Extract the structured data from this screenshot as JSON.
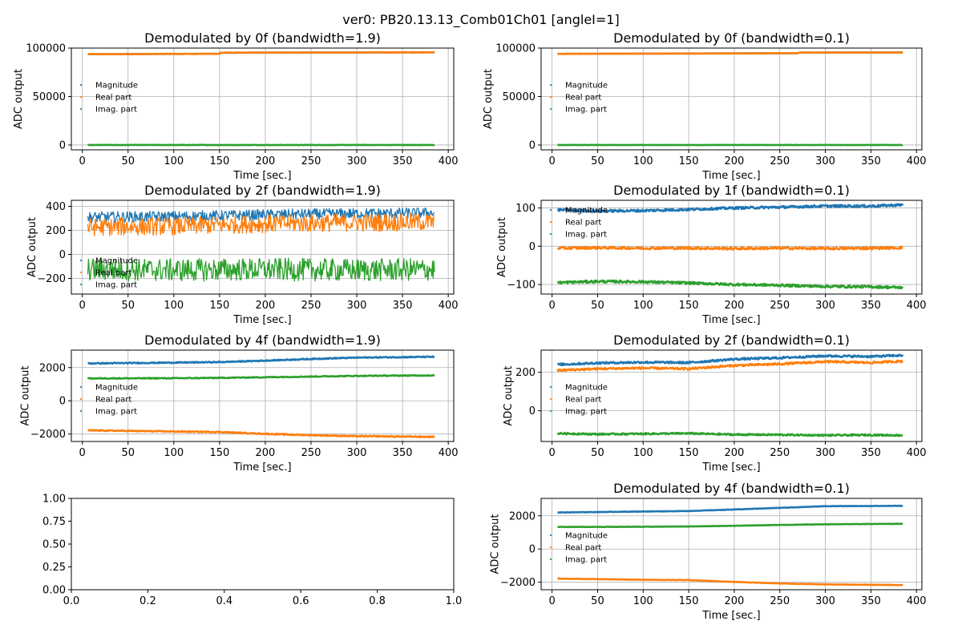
{
  "suptitle": "ver0: PB20.13.13_Comb01Ch01 [angleI=1]",
  "colors": {
    "Magnitude": "#1f77b4",
    "Real part": "#ff7f0e",
    "Imag. part": "#2ca02c"
  },
  "chart_data": [
    {
      "type": "line",
      "title": "Demodulated by 0f (bandwidth=1.9)",
      "xlabel": "Time [sec.]",
      "ylabel": "ADC output",
      "xlim": [
        -12,
        406
      ],
      "ylim": [
        -5000,
        100000
      ],
      "xticks": [
        0,
        50,
        100,
        150,
        200,
        250,
        300,
        350,
        400
      ],
      "yticks": [
        0,
        50000,
        100000
      ],
      "yticklabels": [
        "0",
        "50000",
        "100000"
      ],
      "grid": true,
      "legend": "center-left",
      "legend_entries": [
        "Magnitude",
        "Real part",
        "Imag. part"
      ],
      "series": [
        {
          "name": "Magnitude",
          "x": [
            6,
            150,
            151,
            385
          ],
          "y": [
            93700,
            94100,
            95200,
            95600
          ],
          "noise": 0
        },
        {
          "name": "Real part",
          "x": [
            6,
            150,
            151,
            385
          ],
          "y": [
            93700,
            94100,
            95200,
            95600
          ],
          "noise": 300
        },
        {
          "name": "Imag. part",
          "x": [
            6,
            385
          ],
          "y": [
            0,
            0
          ],
          "noise": 200
        }
      ]
    },
    {
      "type": "line",
      "title": "Demodulated by 0f (bandwidth=0.1)",
      "xlabel": "Time [sec.]",
      "ylabel": "ADC output",
      "xlim": [
        -12,
        406
      ],
      "ylim": [
        -5000,
        100000
      ],
      "xticks": [
        0,
        50,
        100,
        150,
        200,
        250,
        300,
        350,
        400
      ],
      "yticks": [
        0,
        50000,
        100000
      ],
      "yticklabels": [
        "0",
        "50000",
        "100000"
      ],
      "grid": true,
      "legend": "center-left",
      "legend_entries": [
        "Magnitude",
        "Real part",
        "Imag. part"
      ],
      "series": [
        {
          "name": "Magnitude",
          "x": [
            6,
            270,
            271,
            385
          ],
          "y": [
            94000,
            94700,
            95300,
            95500
          ],
          "noise": 0
        },
        {
          "name": "Real part",
          "x": [
            6,
            270,
            271,
            385
          ],
          "y": [
            94000,
            94700,
            95300,
            95500
          ],
          "noise": 200
        },
        {
          "name": "Imag. part",
          "x": [
            6,
            385
          ],
          "y": [
            0,
            0
          ],
          "noise": 150
        }
      ]
    },
    {
      "type": "line",
      "title": "Demodulated by 2f (bandwidth=1.9)",
      "xlabel": "Time [sec.]",
      "ylabel": "ADC output",
      "xlim": [
        -12,
        406
      ],
      "ylim": [
        -330,
        450
      ],
      "xticks": [
        0,
        50,
        100,
        150,
        200,
        250,
        300,
        350,
        400
      ],
      "yticks": [
        -200,
        0,
        200,
        400
      ],
      "yticklabels": [
        "−200",
        "0",
        "200",
        "400"
      ],
      "grid": true,
      "legend": "lower-left",
      "legend_entries": [
        "Magnitude",
        "Real part",
        "Imag. part"
      ],
      "series": [
        {
          "name": "Magnitude",
          "x": [
            6,
            100,
            200,
            300,
            385
          ],
          "y": [
            310,
            315,
            330,
            340,
            345
          ],
          "noise": 45
        },
        {
          "name": "Real part",
          "x": [
            6,
            100,
            200,
            300,
            385
          ],
          "y": [
            225,
            235,
            255,
            265,
            270
          ],
          "noise": 75
        },
        {
          "name": "Imag. part",
          "x": [
            6,
            100,
            200,
            300,
            385
          ],
          "y": [
            -125,
            -130,
            -125,
            -130,
            -125
          ],
          "noise": 95
        }
      ]
    },
    {
      "type": "line",
      "title": "Demodulated by 1f (bandwidth=0.1)",
      "xlabel": "Time [sec.]",
      "ylabel": "ADC output",
      "xlim": [
        -12,
        406
      ],
      "ylim": [
        -125,
        120
      ],
      "xticks": [
        0,
        50,
        100,
        150,
        200,
        250,
        300,
        350,
        400
      ],
      "yticks": [
        -100,
        0,
        100
      ],
      "yticklabels": [
        "−100",
        "0",
        "100"
      ],
      "grid": true,
      "legend": "upper-left",
      "legend_entries": [
        "Magnitude",
        "Real part",
        "Imag. part"
      ],
      "series": [
        {
          "name": "Magnitude",
          "x": [
            6,
            50,
            100,
            150,
            200,
            250,
            300,
            350,
            385
          ],
          "y": [
            95,
            92,
            93,
            96,
            100,
            102,
            105,
            105,
            108
          ],
          "noise": 3
        },
        {
          "name": "Real part",
          "x": [
            6,
            50,
            100,
            150,
            200,
            250,
            300,
            350,
            385
          ],
          "y": [
            -5,
            -4,
            -5,
            -5,
            -6,
            -5,
            -6,
            -5,
            -4
          ],
          "noise": 3
        },
        {
          "name": "Imag. part",
          "x": [
            6,
            50,
            100,
            150,
            200,
            250,
            300,
            350,
            385
          ],
          "y": [
            -95,
            -92,
            -93,
            -96,
            -100,
            -102,
            -105,
            -106,
            -108
          ],
          "noise": 3
        }
      ]
    },
    {
      "type": "line",
      "title": "Demodulated by 4f (bandwidth=1.9)",
      "xlabel": "Time [sec.]",
      "ylabel": "ADC output",
      "xlim": [
        -12,
        406
      ],
      "ylim": [
        -2450,
        3050
      ],
      "xticks": [
        0,
        50,
        100,
        150,
        200,
        250,
        300,
        350,
        400
      ],
      "yticks": [
        -2000,
        0,
        2000
      ],
      "yticklabels": [
        "−2000",
        "0",
        "2000"
      ],
      "grid": true,
      "legend": "center-left",
      "legend_entries": [
        "Magnitude",
        "Real part",
        "Imag. part"
      ],
      "series": [
        {
          "name": "Magnitude",
          "x": [
            6,
            100,
            150,
            200,
            250,
            300,
            385
          ],
          "y": [
            2250,
            2300,
            2330,
            2420,
            2520,
            2600,
            2650
          ],
          "noise": 30
        },
        {
          "name": "Real part",
          "x": [
            6,
            100,
            150,
            200,
            250,
            300,
            385
          ],
          "y": [
            -1780,
            -1850,
            -1880,
            -1990,
            -2070,
            -2130,
            -2170
          ],
          "noise": 30
        },
        {
          "name": "Imag. part",
          "x": [
            6,
            100,
            150,
            200,
            250,
            300,
            385
          ],
          "y": [
            1350,
            1360,
            1380,
            1420,
            1460,
            1500,
            1530
          ],
          "noise": 25
        }
      ]
    },
    {
      "type": "line",
      "title": "Demodulated by 2f (bandwidth=0.1)",
      "xlabel": "Time [sec.]",
      "ylabel": "ADC output",
      "xlim": [
        -12,
        406
      ],
      "ylim": [
        -160,
        315
      ],
      "xticks": [
        0,
        50,
        100,
        150,
        200,
        250,
        300,
        350,
        400
      ],
      "yticks": [
        0,
        200
      ],
      "yticklabels": [
        "0",
        "200"
      ],
      "grid": true,
      "legend": "center-left",
      "legend_entries": [
        "Magnitude",
        "Real part",
        "Imag. part"
      ],
      "series": [
        {
          "name": "Magnitude",
          "x": [
            6,
            50,
            100,
            150,
            200,
            250,
            300,
            350,
            385
          ],
          "y": [
            240,
            248,
            252,
            250,
            268,
            275,
            285,
            282,
            288
          ],
          "noise": 5
        },
        {
          "name": "Real part",
          "x": [
            6,
            50,
            100,
            150,
            200,
            250,
            300,
            350,
            385
          ],
          "y": [
            210,
            218,
            222,
            218,
            235,
            243,
            255,
            250,
            258
          ],
          "noise": 5
        },
        {
          "name": "Imag. part",
          "x": [
            6,
            50,
            100,
            150,
            200,
            250,
            300,
            350,
            385
          ],
          "y": [
            -118,
            -122,
            -120,
            -118,
            -124,
            -125,
            -128,
            -126,
            -128
          ],
          "noise": 4
        }
      ]
    },
    {
      "type": "blank",
      "xlim": [
        0,
        1
      ],
      "ylim": [
        0,
        1
      ],
      "xticks": [
        0,
        0.2,
        0.4,
        0.6,
        0.8,
        1.0
      ],
      "xticklabels": [
        "0.0",
        "0.2",
        "0.4",
        "0.6",
        "0.8",
        "1.0"
      ],
      "yticks": [
        0,
        0.25,
        0.5,
        0.75,
        1.0
      ],
      "yticklabels": [
        "0.00",
        "0.25",
        "0.50",
        "0.75",
        "1.00"
      ],
      "grid": false
    },
    {
      "type": "line",
      "title": "Demodulated by 4f (bandwidth=0.1)",
      "xlabel": "Time [sec.]",
      "ylabel": "ADC output",
      "xlim": [
        -12,
        406
      ],
      "ylim": [
        -2450,
        3050
      ],
      "xticks": [
        0,
        50,
        100,
        150,
        200,
        250,
        300,
        350,
        400
      ],
      "yticks": [
        -2000,
        0,
        2000
      ],
      "yticklabels": [
        "−2000",
        "0",
        "2000"
      ],
      "grid": true,
      "legend": "center-left",
      "legend_entries": [
        "Magnitude",
        "Real part",
        "Imag. part"
      ],
      "series": [
        {
          "name": "Magnitude",
          "x": [
            6,
            100,
            150,
            200,
            250,
            300,
            385
          ],
          "y": [
            2200,
            2260,
            2290,
            2380,
            2480,
            2580,
            2600
          ],
          "noise": 12
        },
        {
          "name": "Real part",
          "x": [
            6,
            100,
            150,
            200,
            250,
            300,
            385
          ],
          "y": [
            -1780,
            -1850,
            -1870,
            -1980,
            -2070,
            -2130,
            -2170
          ],
          "noise": 12
        },
        {
          "name": "Imag. part",
          "x": [
            6,
            100,
            150,
            200,
            250,
            300,
            385
          ],
          "y": [
            1330,
            1340,
            1360,
            1400,
            1450,
            1490,
            1520
          ],
          "noise": 10
        }
      ]
    }
  ]
}
